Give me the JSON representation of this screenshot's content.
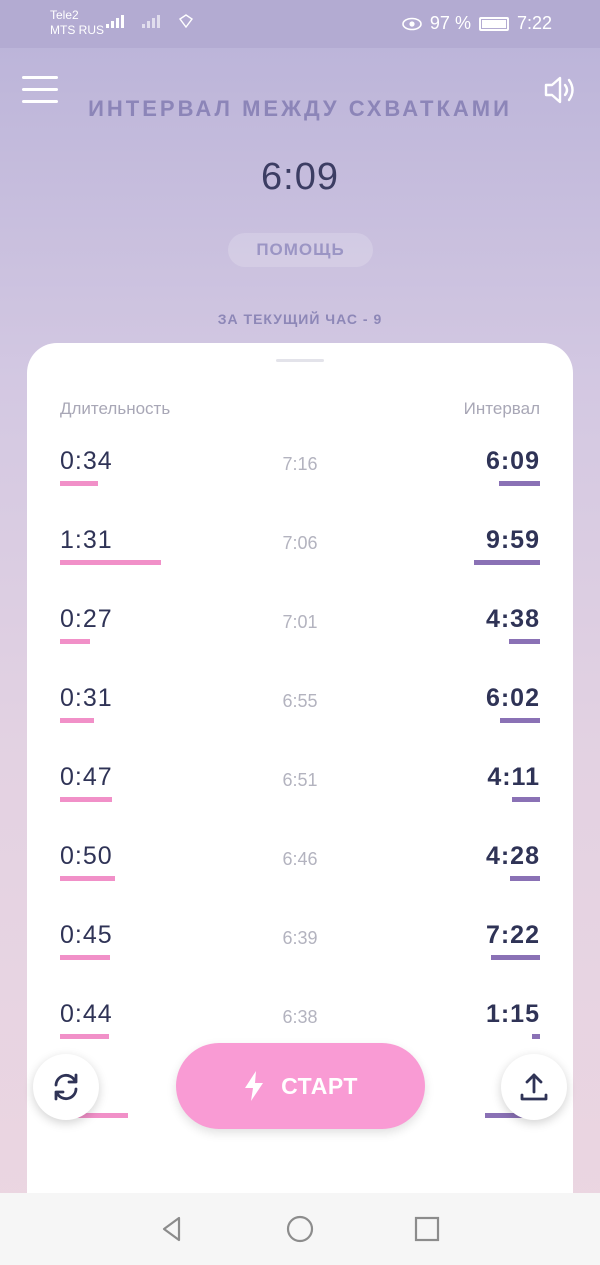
{
  "status_bar": {
    "carrier_1": "Tele2",
    "carrier_2": "MTS RUS",
    "network_type": "4G",
    "battery": "97 %",
    "time": "7:22"
  },
  "header": {
    "title": "ИНТЕРВАЛ МЕЖДУ СХВАТКАМИ",
    "current_interval": "6:09",
    "help_label": "ПОМОЩЬ",
    "hour_count": "ЗА ТЕКУЩИЙ ЧАС - 9"
  },
  "table": {
    "col_duration": "Длительность",
    "col_interval": "Интервал",
    "rows": [
      {
        "duration": "0:34",
        "time": "7:16",
        "interval": "6:09",
        "duration_sec": 34,
        "interval_sec": 369
      },
      {
        "duration": "1:31",
        "time": "7:06",
        "interval": "9:59",
        "duration_sec": 91,
        "interval_sec": 599
      },
      {
        "duration": "0:27",
        "time": "7:01",
        "interval": "4:38",
        "duration_sec": 27,
        "interval_sec": 278
      },
      {
        "duration": "0:31",
        "time": "6:55",
        "interval": "6:02",
        "duration_sec": 31,
        "interval_sec": 362
      },
      {
        "duration": "0:47",
        "time": "6:51",
        "interval": "4:11",
        "duration_sec": 47,
        "interval_sec": 251
      },
      {
        "duration": "0:50",
        "time": "6:46",
        "interval": "4:28",
        "duration_sec": 50,
        "interval_sec": 268
      },
      {
        "duration": "0:45",
        "time": "6:39",
        "interval": "7:22",
        "duration_sec": 45,
        "interval_sec": 442
      },
      {
        "duration": "0:44",
        "time": "6:38",
        "interval": "1:15",
        "duration_sec": 44,
        "interval_sec": 75
      },
      {
        "duration": ":01",
        "time": "",
        "interval": "8:",
        "duration_sec": 61,
        "interval_sec": 500
      }
    ]
  },
  "actions": {
    "start_label": "СТАРТ",
    "refresh_icon": "refresh-icon",
    "share_icon": "share-icon"
  },
  "colors": {
    "duration_bar": "#f190c8",
    "interval_bar": "#8a71b5",
    "start_button": "#f99bd4"
  }
}
